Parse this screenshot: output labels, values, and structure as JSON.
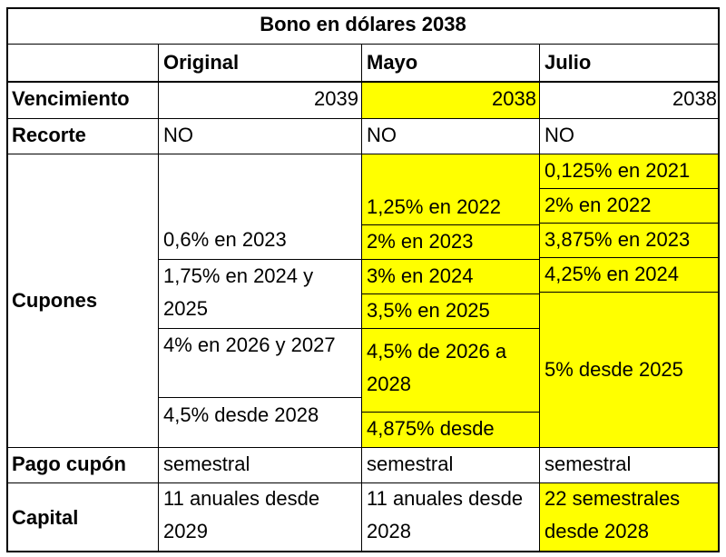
{
  "title": "Bono en dólares 2038",
  "columns": [
    "Original",
    "Mayo",
    "Julio"
  ],
  "rows": {
    "vencimiento": {
      "label": "Vencimiento",
      "original": "2039",
      "mayo": "2038",
      "julio": "2038"
    },
    "recorte": {
      "label": "Recorte",
      "original": "NO",
      "mayo": "NO",
      "julio": "NO"
    },
    "cupones": {
      "label": "Cupones",
      "original": [
        "0,6% en 2023",
        "1,75% en 2024 y 2025",
        "4% en 2026 y 2027",
        "4,5% desde 2028"
      ],
      "mayo": [
        "1,25% en 2022",
        "2% en 2023",
        "3% en 2024",
        "3,5% en 2025",
        "4,5% de 2026 a 2028",
        "4,875% desde"
      ],
      "julio": [
        "0,125% en 2021",
        "2% en 2022",
        "3,875% en 2023",
        "4,25% en 2024",
        "5% desde 2025"
      ]
    },
    "pago_cupon": {
      "label": "Pago cupón",
      "original": "semestral",
      "mayo": "semestral",
      "julio": "semestral"
    },
    "capital": {
      "label": "Capital",
      "original": "11 anuales desde 2029",
      "mayo": "11 anuales desde 2028",
      "julio": "22 semestrales desde 2028"
    }
  },
  "colors": {
    "highlight": "#ffff00",
    "border": "#000000"
  }
}
